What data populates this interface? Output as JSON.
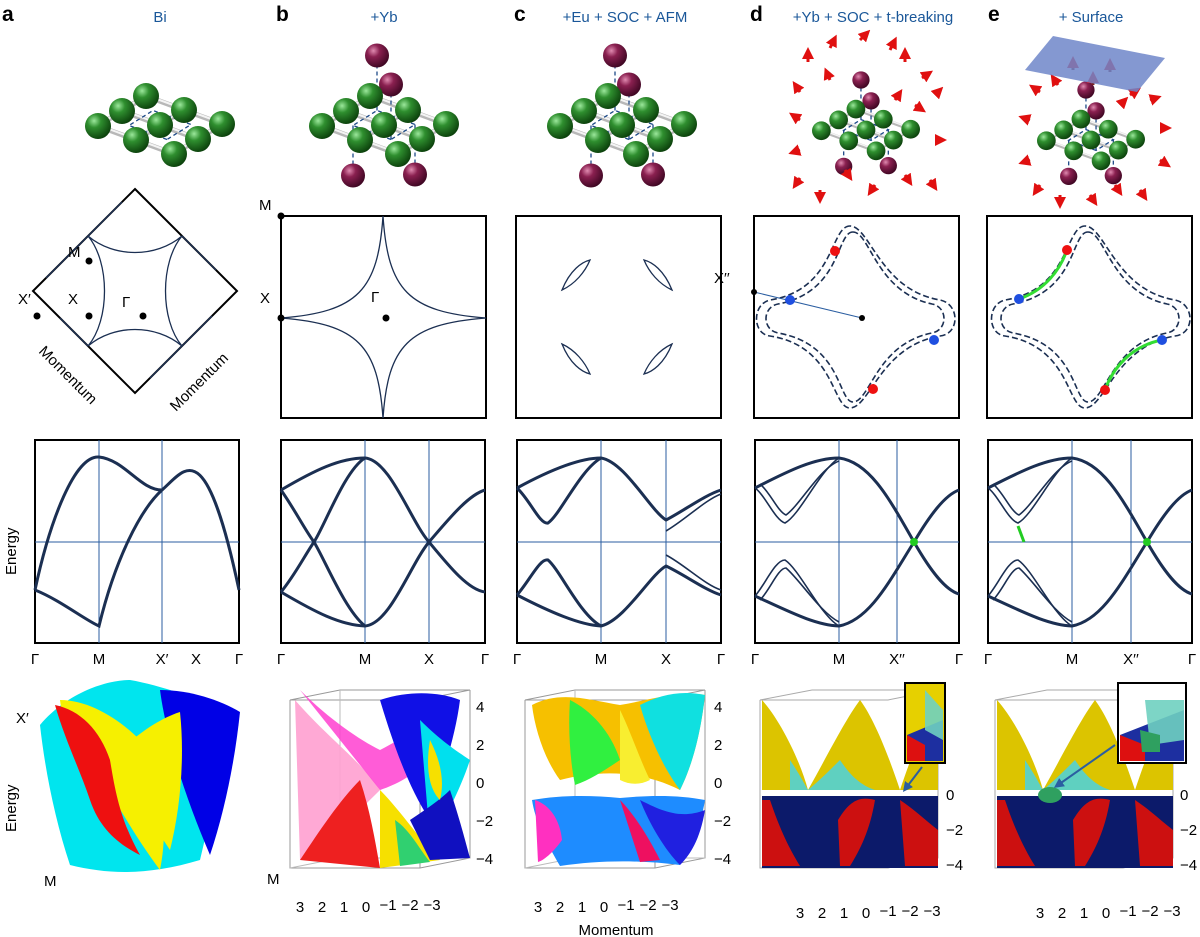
{
  "panels": [
    {
      "letter": "a",
      "title": "Bi"
    },
    {
      "letter": "b",
      "title": "+Yb"
    },
    {
      "letter": "c",
      "title": "+Eu + SOC + AFM"
    },
    {
      "letter": "d",
      "title": "+Yb + SOC + t-breaking"
    },
    {
      "letter": "e",
      "title": "+ Surface"
    }
  ],
  "bz_labels": {
    "a": {
      "M": "M",
      "X": "X",
      "X_prime": "X′",
      "Gamma": "Γ",
      "axis1": "Momentum",
      "axis2": "Momentum"
    },
    "b": {
      "M": "M",
      "X": "X",
      "Gamma": "Γ"
    },
    "d": {
      "X_dprime": "X′′"
    }
  },
  "band_axis": {
    "ylabel": "Energy",
    "a": [
      "Γ",
      "M",
      "X′",
      "X",
      "Γ"
    ],
    "b": [
      "Γ",
      "M",
      "X",
      "Γ"
    ],
    "c": [
      "Γ",
      "M",
      "X",
      "Γ"
    ],
    "d": [
      "Γ",
      "M",
      "X′′",
      "Γ"
    ],
    "e": [
      "Γ",
      "M",
      "X′′",
      "Γ"
    ]
  },
  "surface_plots": {
    "a_corner_top": "X′",
    "a_corner_bottom": "M",
    "a_ylabel": "Energy",
    "b_corner": "M",
    "energy_ticks_bc": [
      "4",
      "2",
      "0",
      "−2",
      "−4"
    ],
    "energy_ticks_de": [
      "0",
      "−2",
      "−4"
    ],
    "momentum_ticks": [
      "3",
      "2",
      "1",
      "0",
      "−1",
      "−2",
      "−3"
    ],
    "xlabel": "Momentum"
  },
  "colors": {
    "bi_atom": "#1e6b1e",
    "rare_earth_atom": "#7a1840",
    "band_line": "#1b2f52",
    "title_blue": "#1a5799",
    "weyl_green": "#22cc22",
    "spin_arrow": "#e01010",
    "surface_plane": "#6f86c9"
  }
}
